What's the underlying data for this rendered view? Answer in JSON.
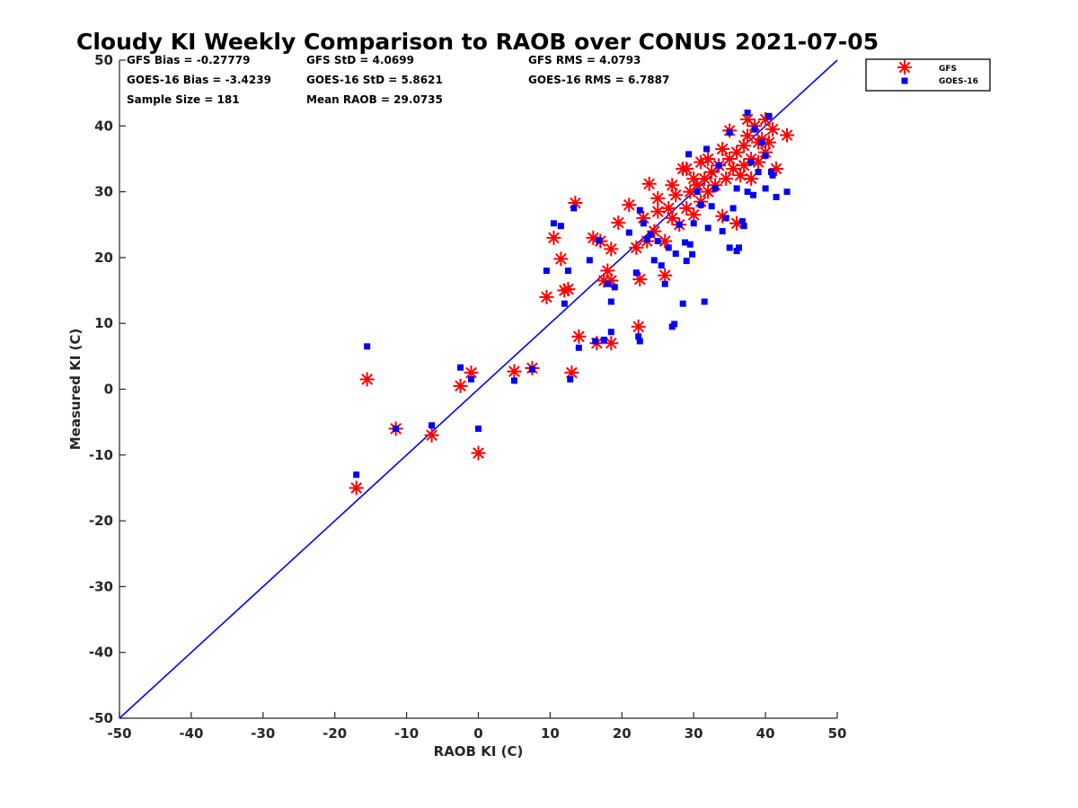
{
  "chart_data": {
    "type": "scatter",
    "title": "Cloudy KI Weekly Comparison to RAOB over CONUS 2021-07-05",
    "xlabel": "RAOB KI (C)",
    "ylabel": "Measured KI (C)",
    "xlim": [
      -50,
      50
    ],
    "ylim": [
      -50,
      50
    ],
    "xticks": [
      "-50",
      "-40",
      "-30",
      "-20",
      "-10",
      "0",
      "10",
      "20",
      "30",
      "40",
      "50"
    ],
    "yticks": [
      "50",
      "40",
      "30",
      "20",
      "10",
      "0",
      "-10",
      "-20",
      "-30",
      "-40",
      "-50"
    ],
    "grid": false,
    "legend_position": "outside top-right",
    "one_to_one_line": true,
    "stats": [
      "GFS Bias = -0.27779",
      "GFS StD = 4.0699",
      "GFS RMS = 4.0793",
      "GOES-16 Bias = -3.4239",
      "GOES-16 StD = 5.8621",
      "GOES-16 RMS = 6.7887",
      "Sample Size = 181",
      "Mean RAOB = 29.0735"
    ],
    "series": [
      {
        "name": "GFS",
        "color": "#ff0000",
        "marker": "asterisk",
        "points": [
          [
            -17,
            -15
          ],
          [
            -15.5,
            1.5
          ],
          [
            -11.5,
            -6
          ],
          [
            -6.5,
            -7
          ],
          [
            -2.5,
            0.5
          ],
          [
            -1,
            2.5
          ],
          [
            0,
            -9.7
          ],
          [
            5,
            2.7
          ],
          [
            7.5,
            3.2
          ],
          [
            9.5,
            14
          ],
          [
            10.5,
            23
          ],
          [
            11.5,
            19.8
          ],
          [
            12,
            15
          ],
          [
            12.5,
            15.2
          ],
          [
            13,
            2.5
          ],
          [
            13.5,
            28.3
          ],
          [
            14,
            8
          ],
          [
            16,
            23
          ],
          [
            16.5,
            7
          ],
          [
            17,
            22.5
          ],
          [
            17.5,
            16.5
          ],
          [
            18,
            18
          ],
          [
            18.5,
            21.3
          ],
          [
            18.5,
            7
          ],
          [
            18.5,
            16.5
          ],
          [
            19.5,
            25.3
          ],
          [
            21,
            28
          ],
          [
            22,
            21.5
          ],
          [
            22.5,
            16.7
          ],
          [
            22.3,
            9.5
          ],
          [
            23,
            26
          ],
          [
            23.5,
            22.5
          ],
          [
            23.8,
            31.2
          ],
          [
            24.5,
            24
          ],
          [
            25,
            27
          ],
          [
            25,
            29
          ],
          [
            26,
            22.5
          ],
          [
            26,
            17.3
          ],
          [
            26.5,
            27.5
          ],
          [
            27,
            26
          ],
          [
            27,
            31
          ],
          [
            27.5,
            29.5
          ],
          [
            28,
            25
          ],
          [
            28.5,
            33.5
          ],
          [
            29,
            33.5
          ],
          [
            29,
            27.5
          ],
          [
            29.5,
            30
          ],
          [
            30,
            32
          ],
          [
            30,
            26.5
          ],
          [
            30.5,
            31
          ],
          [
            31,
            34.5
          ],
          [
            31,
            28.5
          ],
          [
            31.5,
            32
          ],
          [
            32,
            35
          ],
          [
            32,
            30
          ],
          [
            32.5,
            33
          ],
          [
            33,
            31
          ],
          [
            33.5,
            34
          ],
          [
            34,
            36.5
          ],
          [
            34,
            26.3
          ],
          [
            34.5,
            32
          ],
          [
            35,
            35
          ],
          [
            35,
            39.3
          ],
          [
            35.5,
            33.5
          ],
          [
            36,
            36
          ],
          [
            36,
            25.2
          ],
          [
            36.5,
            32.5
          ],
          [
            37,
            37
          ],
          [
            37,
            34
          ],
          [
            37.5,
            41
          ],
          [
            37.5,
            38.5
          ],
          [
            38,
            35
          ],
          [
            38,
            32
          ],
          [
            38.5,
            40
          ],
          [
            39,
            37.5
          ],
          [
            39,
            34.5
          ],
          [
            39.5,
            38
          ],
          [
            40,
            36
          ],
          [
            40,
            41
          ],
          [
            40.5,
            37.5
          ],
          [
            41,
            39.5
          ],
          [
            41.5,
            33.5
          ],
          [
            43,
            38.6
          ]
        ]
      },
      {
        "name": "GOES-16",
        "color": "#0000ff",
        "marker": "square",
        "points": [
          [
            -17,
            -13
          ],
          [
            -15.5,
            6.5
          ],
          [
            -11.5,
            -6
          ],
          [
            -6.5,
            -5.5
          ],
          [
            -2.5,
            3.3
          ],
          [
            -1,
            1.5
          ],
          [
            0,
            -6
          ],
          [
            5,
            1.3
          ],
          [
            7.5,
            3
          ],
          [
            9.5,
            18
          ],
          [
            10.5,
            25.2
          ],
          [
            11.5,
            24.8
          ],
          [
            12,
            13
          ],
          [
            12.5,
            18
          ],
          [
            12.8,
            1.5
          ],
          [
            13.3,
            27.5
          ],
          [
            14,
            6.3
          ],
          [
            15.5,
            19.6
          ],
          [
            16.3,
            7.3
          ],
          [
            16.8,
            22.6
          ],
          [
            17.5,
            7.5
          ],
          [
            18,
            16
          ],
          [
            18.5,
            8.7
          ],
          [
            18.5,
            13.3
          ],
          [
            19,
            15.5
          ],
          [
            21,
            23.8
          ],
          [
            22,
            17.7
          ],
          [
            22.3,
            8
          ],
          [
            22.5,
            7.3
          ],
          [
            22.5,
            27.2
          ],
          [
            23,
            25.2
          ],
          [
            23.5,
            22.8
          ],
          [
            24,
            23.5
          ],
          [
            24.5,
            19.6
          ],
          [
            25,
            22.5
          ],
          [
            25.5,
            18.8
          ],
          [
            26,
            16
          ],
          [
            26.5,
            21.5
          ],
          [
            27,
            9.5
          ],
          [
            27.3,
            9.9
          ],
          [
            27.5,
            20.6
          ],
          [
            28,
            25
          ],
          [
            28.5,
            13
          ],
          [
            28.8,
            22.3
          ],
          [
            29,
            19.5
          ],
          [
            29.3,
            35.7
          ],
          [
            29.5,
            22
          ],
          [
            29.8,
            20.5
          ],
          [
            30,
            25.2
          ],
          [
            30.5,
            30
          ],
          [
            31,
            28
          ],
          [
            31.5,
            13.3
          ],
          [
            31.8,
            36.5
          ],
          [
            32,
            24.5
          ],
          [
            32.5,
            27.8
          ],
          [
            33,
            30.5
          ],
          [
            33.5,
            34
          ],
          [
            34,
            24
          ],
          [
            34.5,
            26
          ],
          [
            35,
            39
          ],
          [
            35,
            21.5
          ],
          [
            35.5,
            27.5
          ],
          [
            36,
            30.5
          ],
          [
            36,
            21
          ],
          [
            36.3,
            21.5
          ],
          [
            36.8,
            25.5
          ],
          [
            37,
            24.8
          ],
          [
            37.5,
            42
          ],
          [
            37.5,
            30
          ],
          [
            38,
            34.5
          ],
          [
            38.3,
            29.5
          ],
          [
            38.5,
            39.5
          ],
          [
            39,
            33
          ],
          [
            39.5,
            37.5
          ],
          [
            40,
            30.5
          ],
          [
            40,
            35.5
          ],
          [
            40.5,
            41.5
          ],
          [
            40.8,
            33
          ],
          [
            41,
            32.5
          ],
          [
            41.5,
            29.2
          ],
          [
            43,
            30
          ]
        ]
      }
    ]
  }
}
